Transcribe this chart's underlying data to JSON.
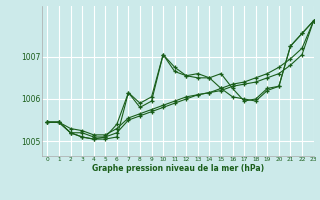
{
  "xlabel": "Graphe pression niveau de la mer (hPa)",
  "bg_color": "#cceaea",
  "grid_color": "#ffffff",
  "line_color": "#1a5e1a",
  "xlim": [
    -0.5,
    23
  ],
  "ylim": [
    1004.65,
    1008.2
  ],
  "yticks": [
    1005,
    1006,
    1007
  ],
  "xticks": [
    0,
    1,
    2,
    3,
    4,
    5,
    6,
    7,
    8,
    9,
    10,
    11,
    12,
    13,
    14,
    15,
    16,
    17,
    18,
    19,
    20,
    21,
    22,
    23
  ],
  "series": [
    [
      1005.45,
      1005.45,
      1005.2,
      1005.1,
      1005.05,
      1005.05,
      1005.1,
      1006.15,
      1005.8,
      1005.95,
      1007.05,
      1006.75,
      1006.55,
      1006.5,
      1006.5,
      1006.6,
      1006.25,
      1005.95,
      1006.0,
      1006.25,
      1006.3,
      1007.25,
      1007.55,
      1007.85
    ],
    [
      1005.45,
      1005.45,
      1005.2,
      1005.1,
      1005.05,
      1005.1,
      1005.4,
      1006.15,
      1005.9,
      1006.05,
      1007.05,
      1006.65,
      1006.55,
      1006.6,
      1006.5,
      1006.25,
      1006.05,
      1006.0,
      1005.95,
      1006.2,
      1006.3,
      1007.25,
      1007.55,
      1007.85
    ],
    [
      1005.45,
      1005.45,
      1005.2,
      1005.2,
      1005.1,
      1005.1,
      1005.2,
      1005.5,
      1005.6,
      1005.7,
      1005.8,
      1005.9,
      1006.0,
      1006.1,
      1006.15,
      1006.2,
      1006.3,
      1006.35,
      1006.4,
      1006.5,
      1006.6,
      1006.8,
      1007.05,
      1007.85
    ],
    [
      1005.45,
      1005.45,
      1005.3,
      1005.25,
      1005.15,
      1005.15,
      1005.3,
      1005.55,
      1005.65,
      1005.75,
      1005.85,
      1005.95,
      1006.05,
      1006.1,
      1006.15,
      1006.25,
      1006.35,
      1006.4,
      1006.5,
      1006.6,
      1006.75,
      1006.95,
      1007.2,
      1007.85
    ]
  ]
}
